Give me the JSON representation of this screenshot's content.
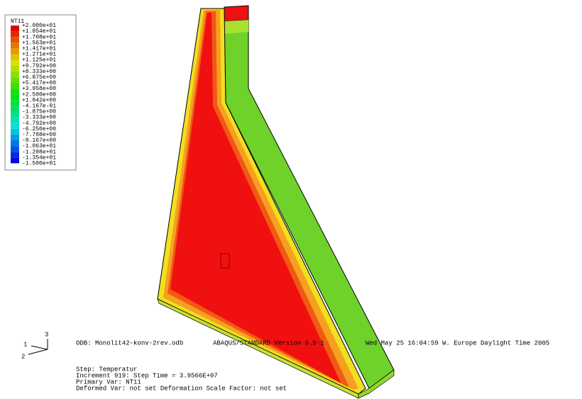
{
  "legend": {
    "title": "NT11",
    "labels": [
      "+2.000e+01",
      "+1.854e+01",
      "+1.708e+01",
      "+1.563e+01",
      "+1.417e+01",
      "+1.271e+01",
      "+1.125e+01",
      "+9.792e+00",
      "+8.333e+00",
      "+6.875e+00",
      "+5.417e+00",
      "+3.958e+00",
      "+2.500e+00",
      "+1.042e+00",
      "-4.167e-01",
      "-1.875e+00",
      "-3.333e+00",
      "-4.792e+00",
      "-6.250e+00",
      "-7.708e+00",
      "-9.167e+00",
      "-1.063e+01",
      "-1.208e+01",
      "-1.354e+01",
      "-1.500e+01"
    ]
  },
  "info": {
    "odb": "ODB: Monolit42-konv-2rev.odb",
    "version": "ABAQUS/STANDARD Version 6.5-1",
    "date": "Wed May 25 16:04:59 W. Europe Daylight Time 2005",
    "step": "Step: Temperatur",
    "increment": "Increment    919: Step Time =    3.9566E+07",
    "primary": "Primary Var: NT11",
    "deformed": "Deformed Var: not set   Deformation Scale Factor: not set"
  },
  "triad": {
    "z": "3",
    "x": "1",
    "y": "2"
  }
}
